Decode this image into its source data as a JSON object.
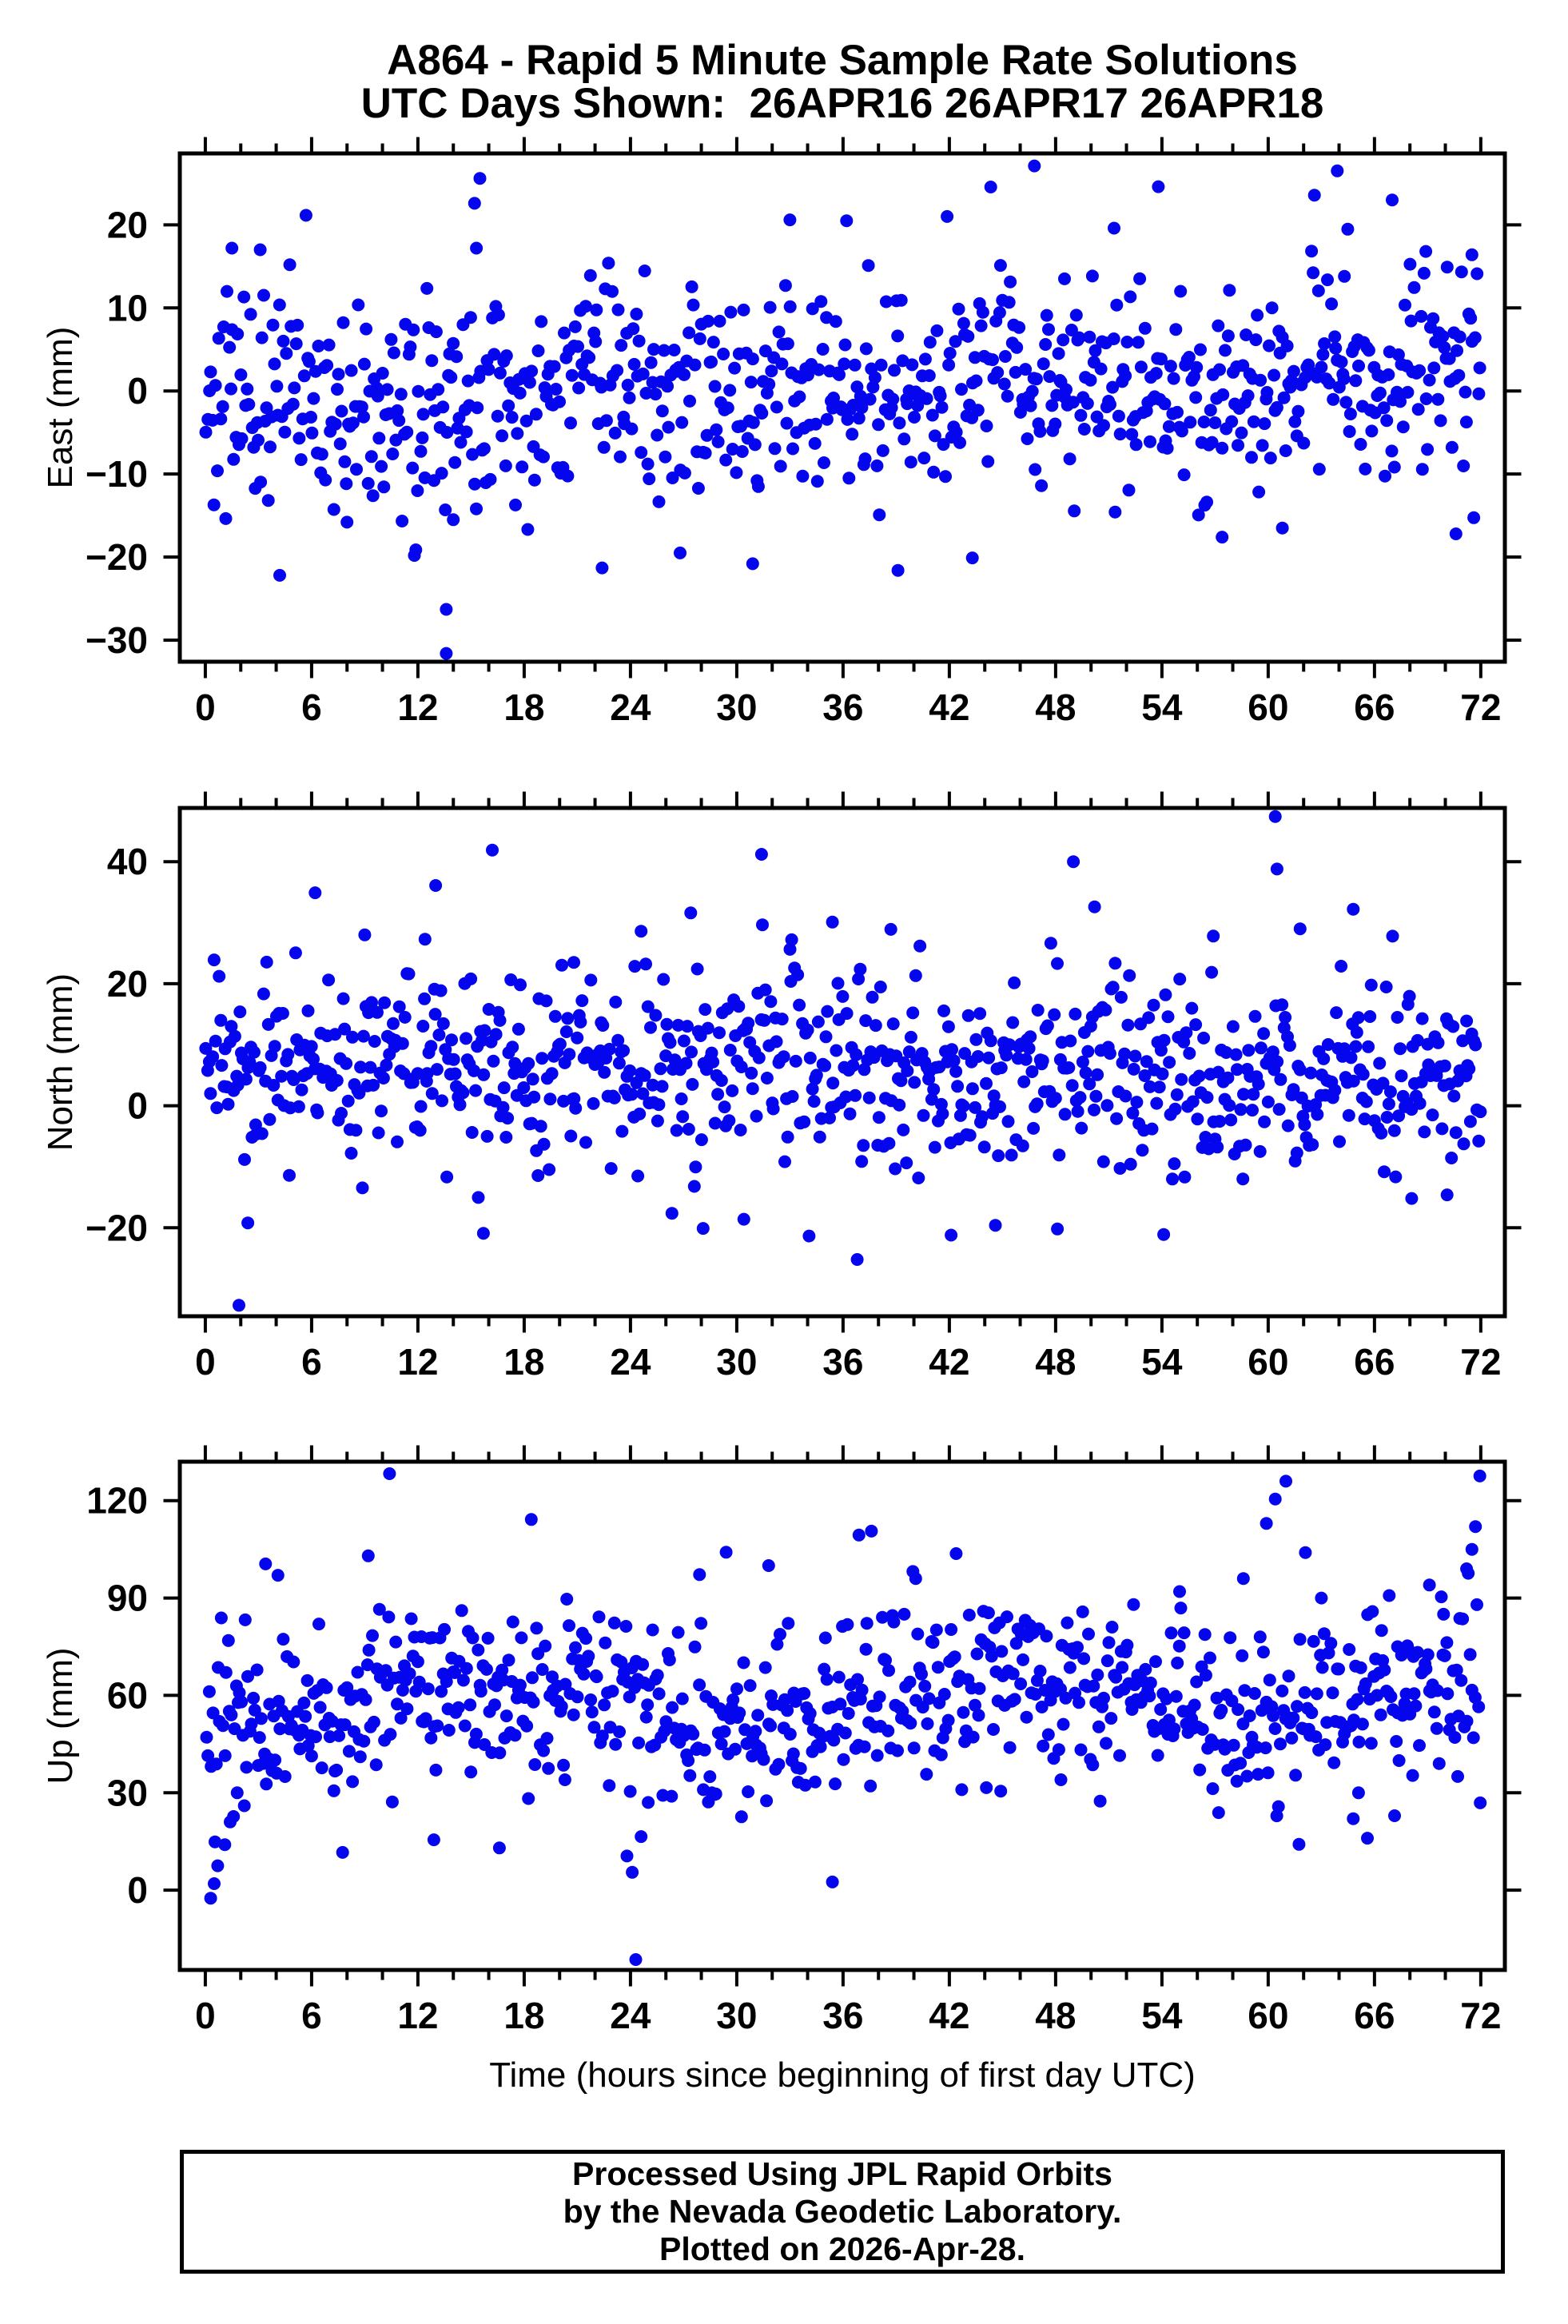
{
  "title": {
    "line1": "A864 - Rapid 5 Minute Sample Rate Solutions",
    "line2": "UTC Days Shown:  26APR16 26APR17 26APR18"
  },
  "footer": {
    "line1": "Processed Using JPL Rapid Orbits",
    "line2": "by the Nevada Geodetic Laboratory.",
    "line3": "Plotted on 2026-Apr-28."
  },
  "colors": {
    "point": "#0505ee",
    "frame": "#000000",
    "text": "#000000",
    "background": "#ffffff"
  },
  "chart_data": {
    "type": "scatter",
    "x_axis": {
      "label": "Time (hours since beginning of first day UTC)",
      "ticks_major": [
        0,
        6,
        12,
        18,
        24,
        30,
        36,
        42,
        48,
        54,
        60,
        66,
        72
      ],
      "minor_step": 2,
      "xlim": [
        -1.44,
        73.36
      ]
    },
    "sample_interval_minutes": 5,
    "days_shown": [
      "26APR16",
      "26APR17",
      "26APR18"
    ],
    "panels": [
      {
        "name": "east",
        "ylabel": "East (mm)",
        "ylim": [
          -32.6,
          28.6
        ],
        "y_ticks": [
          -30,
          -20,
          -10,
          0,
          10,
          20
        ],
        "n_points": 780,
        "seed": 101,
        "mean_start": -1.3,
        "mean_end": 2.0,
        "sd": 6.6,
        "wander_amp": 1.4,
        "wander_period": 21,
        "wander_phase": 0.8,
        "outliers": [
          [
            13.6,
            -31.6
          ],
          [
            13.6,
            -26.3
          ],
          [
            14.0,
            -15.5
          ],
          [
            15.2,
            22.6
          ],
          [
            15.5,
            25.6
          ],
          [
            15.3,
            17.2
          ],
          [
            3.1,
            17.0
          ],
          [
            1.5,
            17.2
          ],
          [
            4.2,
            -22.2
          ],
          [
            8.0,
            -15.8
          ],
          [
            11.8,
            -19.8
          ],
          [
            22.4,
            -21.3
          ],
          [
            26.8,
            -19.5
          ],
          [
            30.9,
            -20.8
          ],
          [
            36.2,
            20.5
          ],
          [
            33.0,
            20.6
          ],
          [
            39.1,
            -21.6
          ],
          [
            43.3,
            -20.1
          ],
          [
            46.8,
            27.1
          ],
          [
            48.5,
            13.5
          ],
          [
            51.3,
            19.6
          ],
          [
            53.8,
            24.6
          ],
          [
            57.4,
            -17.6
          ],
          [
            60.8,
            -16.5
          ],
          [
            63.9,
            26.5
          ],
          [
            64.3,
            13.8
          ],
          [
            67.0,
            23.0
          ],
          [
            68.9,
            16.8
          ],
          [
            70.6,
            -17.2
          ],
          [
            71.5,
            16.4
          ]
        ]
      },
      {
        "name": "north",
        "ylabel": "North (mm)",
        "ylim": [
          -34.5,
          48.8
        ],
        "y_ticks": [
          -20,
          0,
          20,
          40
        ],
        "n_points": 800,
        "seed": 202,
        "mean_start": 7.6,
        "mean_end": 4.8,
        "sd": 7.8,
        "wander_amp": 1.6,
        "wander_period": 17,
        "wander_phase": 2.1,
        "outliers": [
          [
            1.9,
            -32.7
          ],
          [
            2.4,
            -19.2
          ],
          [
            6.2,
            34.9
          ],
          [
            9.0,
            28.0
          ],
          [
            13.0,
            36.1
          ],
          [
            12.4,
            27.3
          ],
          [
            16.2,
            41.9
          ],
          [
            15.7,
            -20.9
          ],
          [
            20.8,
            23.5
          ],
          [
            24.6,
            28.6
          ],
          [
            27.4,
            31.6
          ],
          [
            28.1,
            -20.1
          ],
          [
            30.4,
            -18.6
          ],
          [
            31.4,
            41.2
          ],
          [
            33.1,
            27.2
          ],
          [
            35.4,
            30.1
          ],
          [
            36.8,
            -25.2
          ],
          [
            38.7,
            28.9
          ],
          [
            42.1,
            -21.2
          ],
          [
            44.6,
            -19.6
          ],
          [
            48.1,
            -20.2
          ],
          [
            50.2,
            32.6
          ],
          [
            54.1,
            -21.1
          ],
          [
            56.9,
            27.8
          ],
          [
            60.4,
            47.4
          ],
          [
            60.5,
            38.8
          ],
          [
            64.8,
            32.2
          ],
          [
            61.8,
            29.0
          ],
          [
            68.1,
            -15.2
          ],
          [
            70.1,
            -14.6
          ],
          [
            71.2,
            13.9
          ]
        ]
      },
      {
        "name": "up",
        "ylabel": "Up (mm)",
        "ylim": [
          -24.6,
          132
        ],
        "y_ticks": [
          0,
          30,
          60,
          90,
          120
        ],
        "n_points": 760,
        "seed": 303,
        "mean_start": 57,
        "mean_end": 60,
        "sd": 13.5,
        "wander_amp": 5,
        "wander_period": 29,
        "wander_phase": 4.4,
        "outliers": [
          [
            0.3,
            -2.5
          ],
          [
            0.5,
            2.0
          ],
          [
            0.7,
            7.5
          ],
          [
            1.1,
            14.0
          ],
          [
            1.4,
            21.0
          ],
          [
            1.8,
            30.0
          ],
          [
            2.2,
            26.0
          ],
          [
            3.4,
            100.5
          ],
          [
            4.1,
            97.0
          ],
          [
            9.2,
            103.0
          ],
          [
            10.4,
            128.3
          ],
          [
            12.9,
            15.5
          ],
          [
            16.6,
            13.0
          ],
          [
            18.4,
            114.2
          ],
          [
            20.3,
            34.0
          ],
          [
            23.8,
            10.5
          ],
          [
            24.1,
            5.5
          ],
          [
            24.3,
            -21.4
          ],
          [
            24.6,
            16.5
          ],
          [
            25.0,
            27.0
          ],
          [
            27.9,
            97.2
          ],
          [
            29.4,
            104.1
          ],
          [
            31.8,
            100.0
          ],
          [
            33.2,
            42.0
          ],
          [
            35.4,
            2.5
          ],
          [
            36.9,
            109.4
          ],
          [
            37.6,
            110.6
          ],
          [
            40.1,
            96.0
          ],
          [
            44.9,
            30.5
          ],
          [
            48.3,
            34.0
          ],
          [
            52.4,
            88.0
          ],
          [
            55.0,
            92.0
          ],
          [
            58.6,
            96.0
          ],
          [
            59.9,
            113.0
          ],
          [
            60.4,
            120.5
          ],
          [
            61.0,
            126.0
          ],
          [
            62.1,
            104.0
          ],
          [
            63.0,
            90.0
          ],
          [
            64.8,
            22.0
          ],
          [
            65.1,
            30.0
          ],
          [
            65.6,
            16.0
          ],
          [
            66.4,
            80.0
          ],
          [
            67.3,
            75.0
          ],
          [
            68.2,
            72.0
          ],
          [
            69.1,
            94.0
          ],
          [
            69.9,
            85.0
          ],
          [
            70.7,
            35.0
          ],
          [
            71.2,
            99.0
          ],
          [
            71.5,
            105.0
          ],
          [
            71.7,
            112.0
          ],
          [
            71.95,
            127.6
          ]
        ]
      }
    ]
  }
}
